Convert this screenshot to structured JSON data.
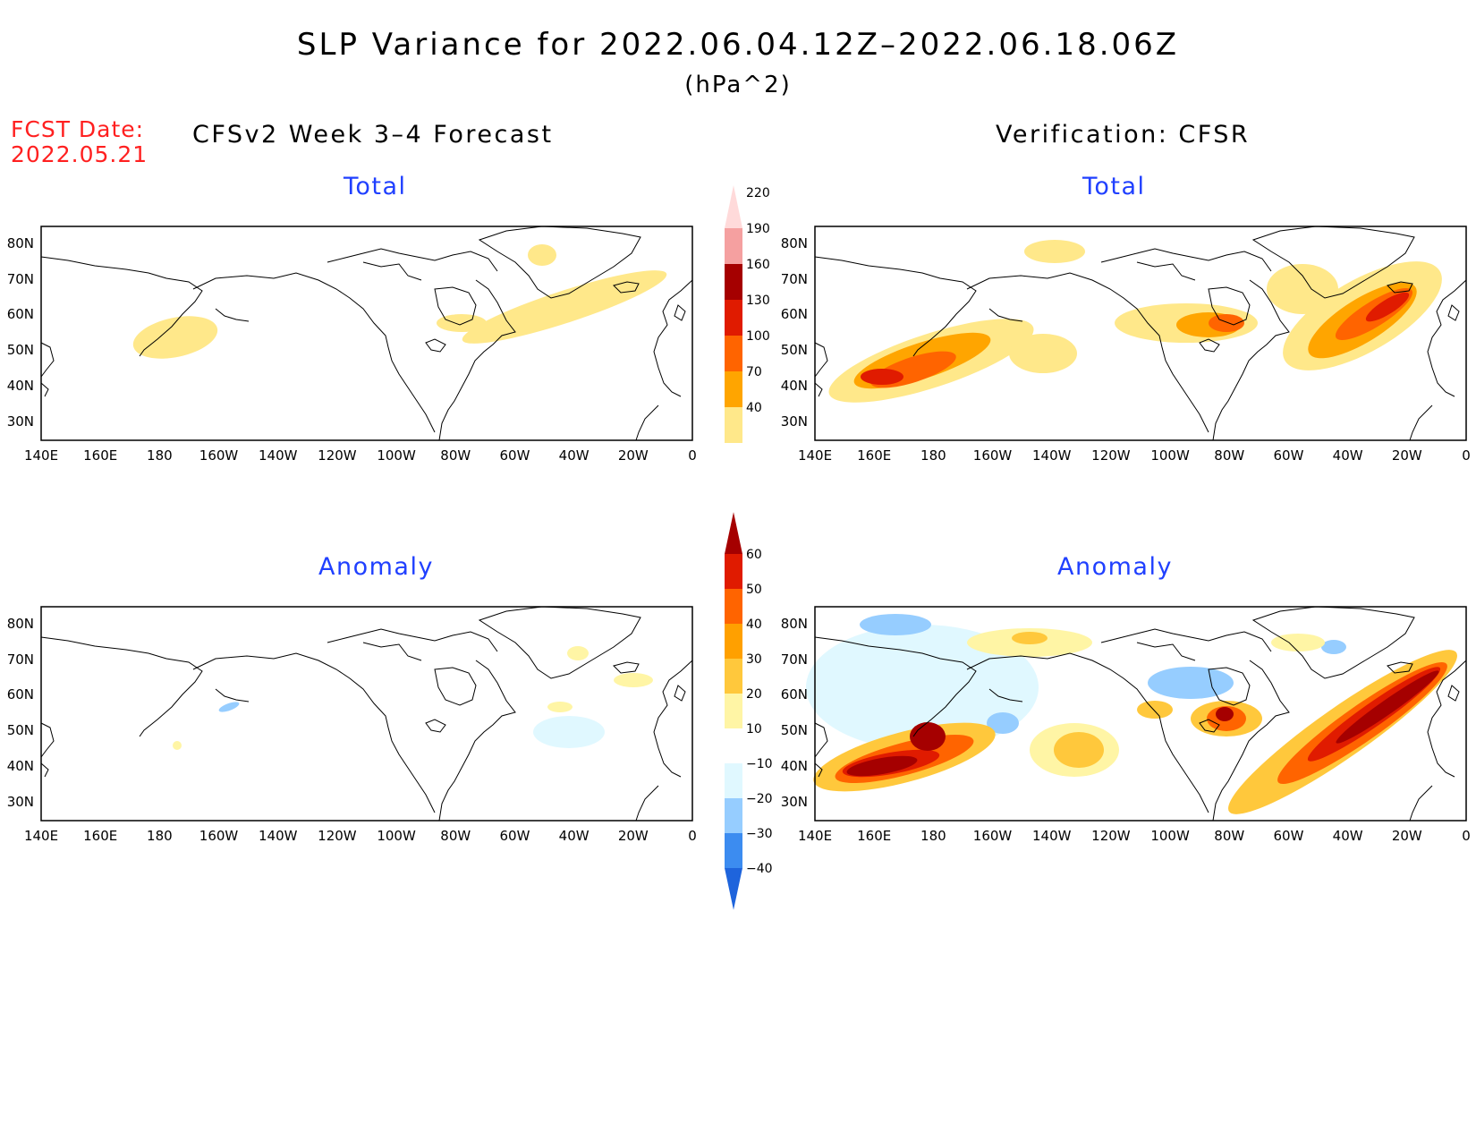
{
  "title": "SLP Variance for 2022.06.04.12Z–2022.06.18.06Z",
  "units": "(hPa^2)",
  "fcst_date_label": "FCST Date:",
  "fcst_date": "2022.05.21",
  "left_heading": "CFSv2 Week 3–4 Forecast",
  "right_heading": "Verification: CFSR",
  "panels": {
    "fcst_total": {
      "title": "Total"
    },
    "verif_total": {
      "title": "Total"
    },
    "fcst_anom": {
      "title": "Anomaly"
    },
    "verif_anom": {
      "title": "Anomaly"
    }
  },
  "lon_labels": [
    "140E",
    "160E",
    "180",
    "160W",
    "140W",
    "120W",
    "100W",
    "80W",
    "60W",
    "40W",
    "20W",
    "0"
  ],
  "lat_labels": [
    "80N",
    "70N",
    "60N",
    "50N",
    "40N",
    "30N"
  ],
  "total_colorbar": {
    "levels": [
      "40",
      "70",
      "100",
      "130",
      "160",
      "190",
      "220"
    ],
    "colors": [
      "#ffe88a",
      "#ffa500",
      "#ff6400",
      "#e01b00",
      "#a50000",
      "#f5a0a0",
      "#ffdada"
    ]
  },
  "anomaly_colorbar": {
    "levels": [
      "−40",
      "−30",
      "−20",
      "−10",
      "10",
      "20",
      "30",
      "40",
      "50",
      "60"
    ],
    "colors": [
      "#1e64dc",
      "#3c8cf0",
      "#96cdff",
      "#e0f8ff",
      "#ffffff",
      "#fff5a5",
      "#ffc83c",
      "#ffa000",
      "#ff6400",
      "#e01b00",
      "#a50000"
    ]
  },
  "map_colors": {
    "yellow": "#ffe88a",
    "orange": "#ffa500",
    "dkorange": "#ff6400",
    "red": "#e01b00",
    "dkred": "#a50000",
    "ltyellow": "#fff5a5",
    "gold": "#ffc83c",
    "ltblue": "#e0f8ff",
    "blue": "#96cdff",
    "midblue": "#3c8cf0"
  }
}
